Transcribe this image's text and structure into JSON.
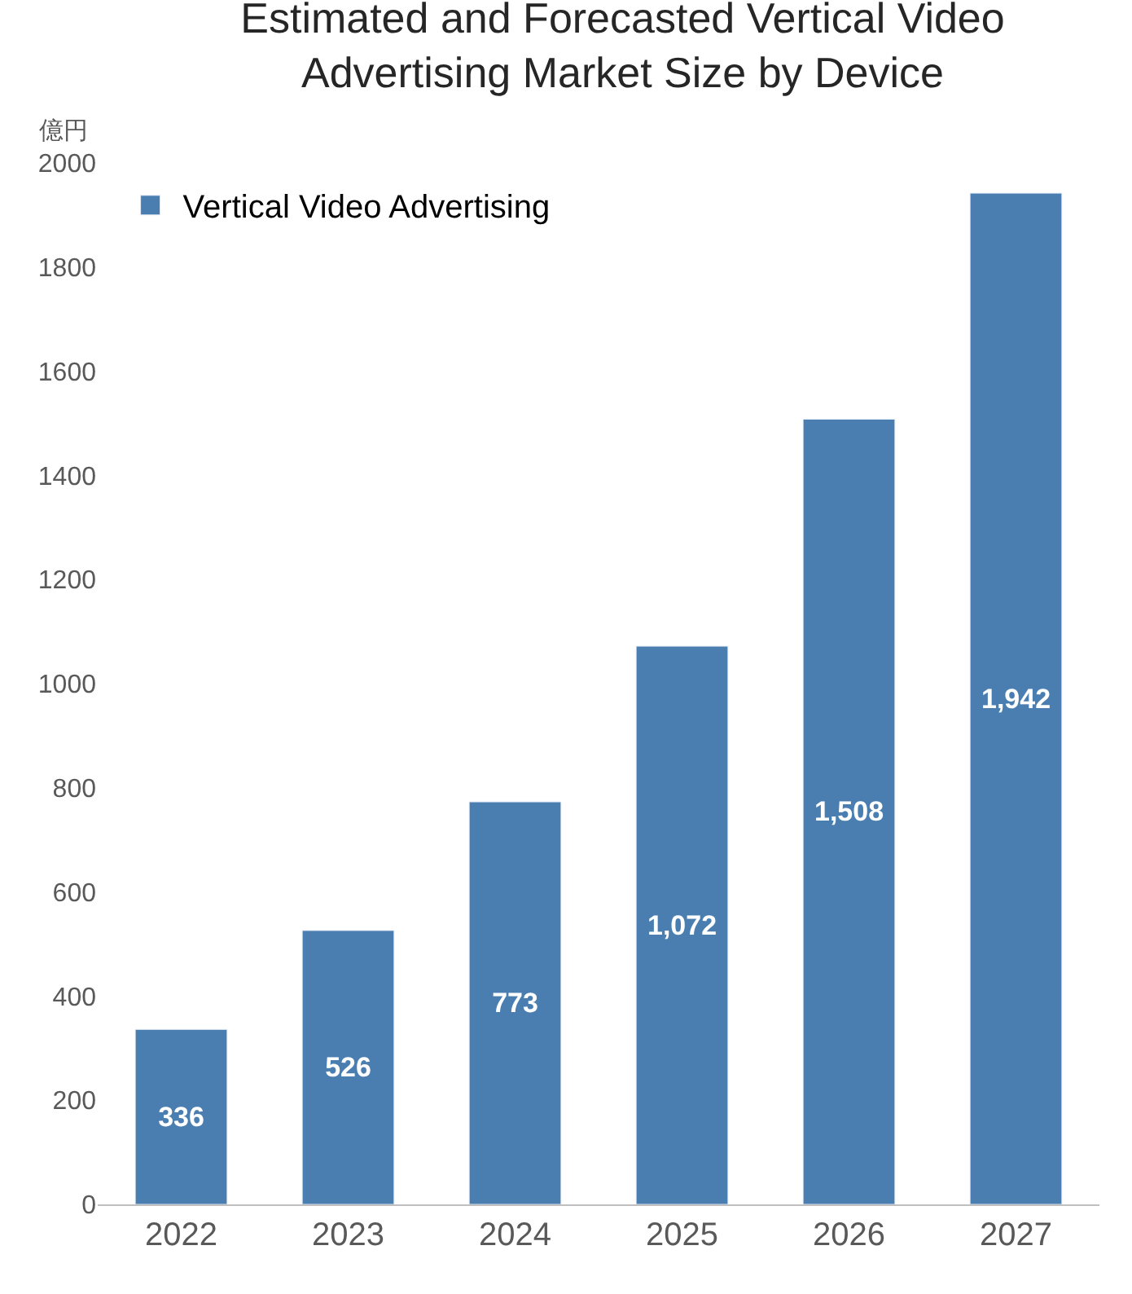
{
  "chart_data": {
    "type": "bar",
    "title": "Estimated and Forecasted Vertical Video\nAdvertising Market Size by Device",
    "ylabel": "億円",
    "categories": [
      "2022",
      "2023",
      "2024",
      "2025",
      "2026",
      "2027"
    ],
    "series": [
      {
        "name": "Vertical Video Advertising",
        "color": "#4a7eb0",
        "values": [
          336,
          526,
          773,
          1072,
          1508,
          1942
        ],
        "value_labels": [
          "336",
          "526",
          "773",
          "1,072",
          "1,508",
          "1,942"
        ]
      }
    ],
    "ylim": [
      0,
      2000
    ],
    "yticks": [
      0,
      200,
      400,
      600,
      800,
      1000,
      1200,
      1400,
      1600,
      1800,
      2000
    ],
    "grid": false,
    "legend": "top left"
  }
}
